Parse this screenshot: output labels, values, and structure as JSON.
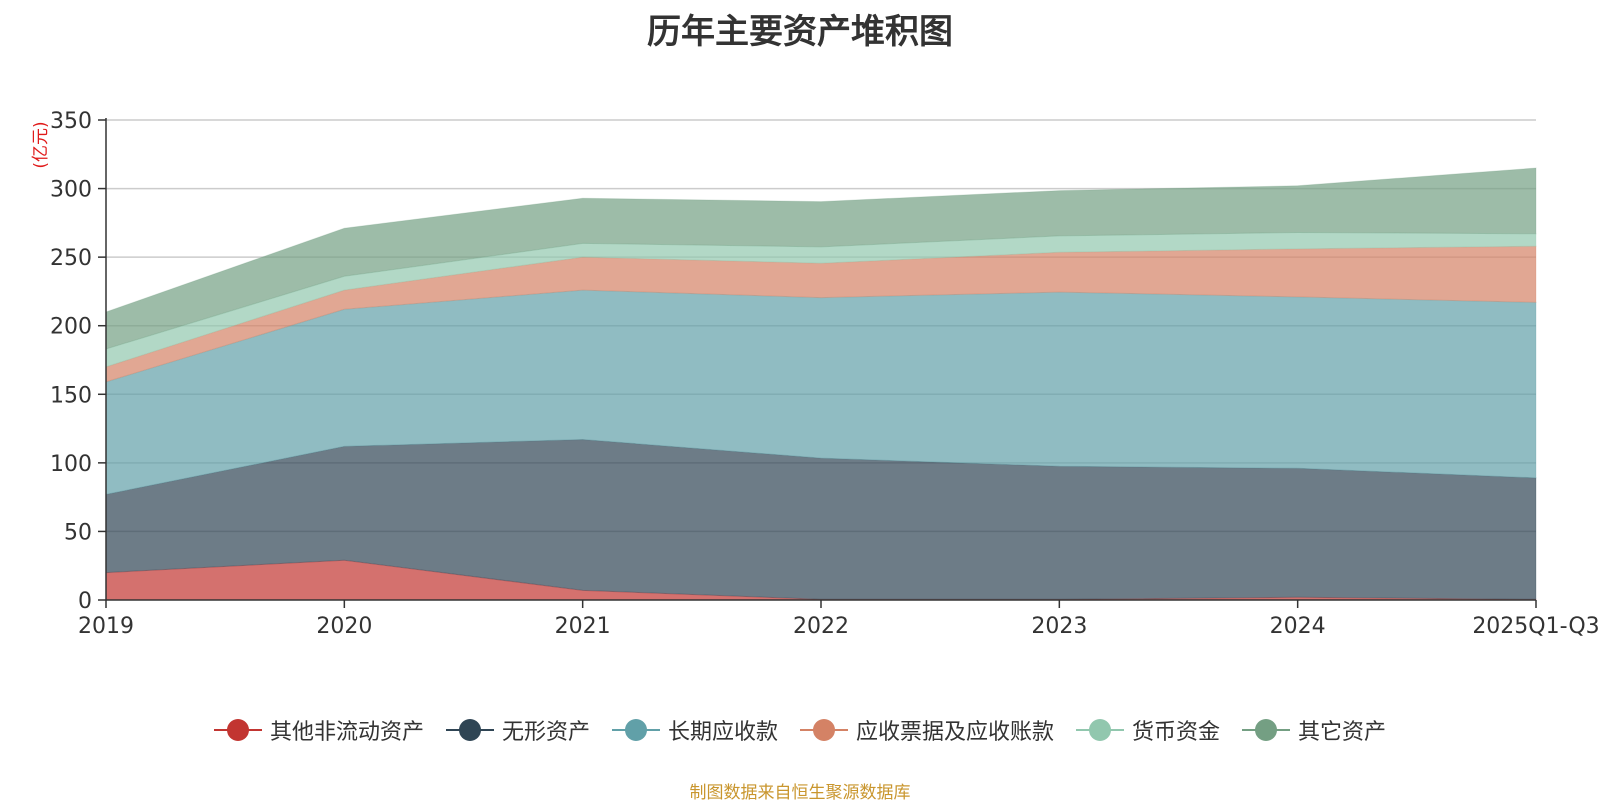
{
  "title": "历年主要资产堆积图",
  "source_note": "制图数据来自恒生聚源数据库",
  "chart_data": {
    "type": "area",
    "stacked": true,
    "title": "历年主要资产堆积图",
    "ylabel": "(亿元)",
    "xlabel": "",
    "ylim": [
      0,
      350
    ],
    "yticks": [
      0,
      50,
      100,
      150,
      200,
      250,
      300,
      350
    ],
    "grid": true,
    "legend_position": "bottom",
    "categories": [
      "2019",
      "2020",
      "2021",
      "2022",
      "2023",
      "2024",
      "2025Q1-Q3"
    ],
    "series": [
      {
        "name": "其他非流动资产",
        "color": "#c23531",
        "values": [
          20,
          29,
          7,
          0.5,
          0.5,
          2,
          0.5
        ]
      },
      {
        "name": "无形资产",
        "color": "#2f4554",
        "values": [
          57,
          83,
          110,
          103,
          97,
          94,
          88.5
        ]
      },
      {
        "name": "长期应收款",
        "color": "#61a0a8",
        "values": [
          82,
          100,
          109,
          117,
          127,
          125,
          128
        ]
      },
      {
        "name": "应收票据及应收账款",
        "color": "#d48265",
        "values": [
          11,
          14,
          24,
          25,
          29,
          35,
          41
        ]
      },
      {
        "name": "货币资金",
        "color": "#91c7ae",
        "values": [
          13,
          10,
          10,
          12,
          12,
          12,
          9
        ]
      },
      {
        "name": "其它资产",
        "color": "#749f83",
        "values": [
          27,
          35,
          33,
          33,
          33,
          34,
          48
        ]
      }
    ]
  }
}
